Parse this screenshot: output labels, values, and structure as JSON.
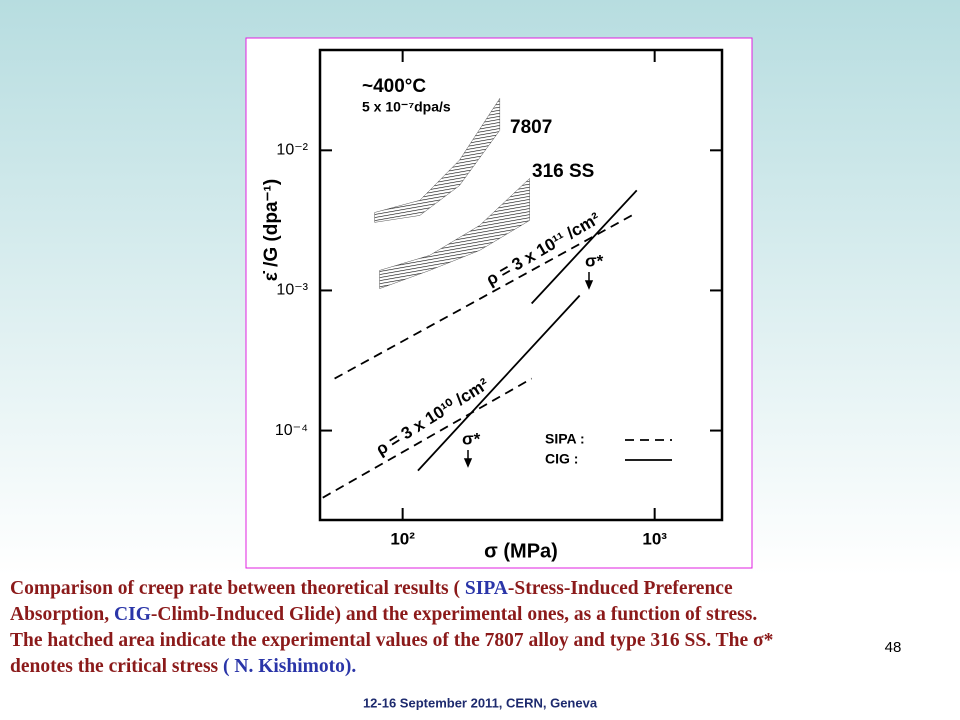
{
  "chart_data": {
    "type": "line",
    "log_x": true,
    "log_y": true,
    "x_label": "σ (MPa)",
    "y_label": "ε̇ /G (dpa⁻¹)",
    "xlim": [
      47,
      1850
    ],
    "ylim": [
      2.3e-05,
      0.052
    ],
    "xticks": [
      {
        "value": 100,
        "label": "10²"
      },
      {
        "value": 1000,
        "label": "10³"
      }
    ],
    "yticks": [
      {
        "value": 0.0001,
        "label": "10⁻⁴"
      },
      {
        "value": 0.001,
        "label": "10⁻³"
      },
      {
        "value": 0.01,
        "label": "10⁻²"
      }
    ],
    "series": [
      {
        "name": "SIPA :",
        "color": "#000000",
        "dashed": true,
        "x": [
          53.7,
          811,
          null,
          48.2,
          325
        ],
        "values": [
          0.000235,
          0.00343,
          null,
          3.32e-05,
          0.000235
        ]
      },
      {
        "name": "CIG  :",
        "color": "#000000",
        "dashed": false,
        "x": [
          325,
          849,
          null,
          115,
          504
        ],
        "values": [
          0.000807,
          0.00518,
          null,
          5.18e-05,
          0.00092
        ]
      }
    ],
    "bands": [
      {
        "x": [
          77.4,
          117,
          168,
          243
        ],
        "lower": [
          0.00306,
          0.00343,
          0.0056,
          0.0139
        ],
        "upper": [
          0.0036,
          0.0044,
          0.0085,
          0.0235
        ]
      },
      {
        "x": [
          81,
          128,
          202,
          319
        ],
        "lower": [
          0.00103,
          0.00139,
          0.00193,
          0.00316
        ],
        "upper": [
          0.00139,
          0.00178,
          0.00291,
          0.0063
        ]
      }
    ],
    "annotations": [
      "~400°C",
      "5 x 10⁻⁷dpa/s",
      "7807",
      "316 SS",
      "ρ = 3 x 10¹¹ /cm²",
      "ρ = 3 x 10¹⁰ /cm²",
      "σ*",
      "σ*"
    ]
  },
  "caption": [
    [
      {
        "text": "Comparison of creep rate between theoretical results ( ",
        "color": "#8b1a1a"
      },
      {
        "text": "SIPA",
        "color": "#2a35a8"
      },
      {
        "text": "-Stress-Induced Preference",
        "color": "#8b1a1a"
      }
    ],
    [
      {
        "text": "Absorption, ",
        "color": "#8b1a1a"
      },
      {
        "text": "CIG",
        "color": "#2a35a8"
      },
      {
        "text": "-Climb-Induced Glide) and the experimental ones, as a function of stress.",
        "color": "#8b1a1a"
      }
    ],
    [
      {
        "text": "The hatched area indicate the experimental values of the 7807 alloy and type 316 SS. The σ*",
        "color": "#8b1a1a"
      }
    ],
    [
      {
        "text": "denotes the critical stress ",
        "color": "#8b1a1a"
      },
      {
        "text": "( N. Kishimoto).",
        "color": "#2a35a8"
      }
    ]
  ],
  "page_number": "48",
  "footer": "12-16  September 2011, CERN, Geneva"
}
